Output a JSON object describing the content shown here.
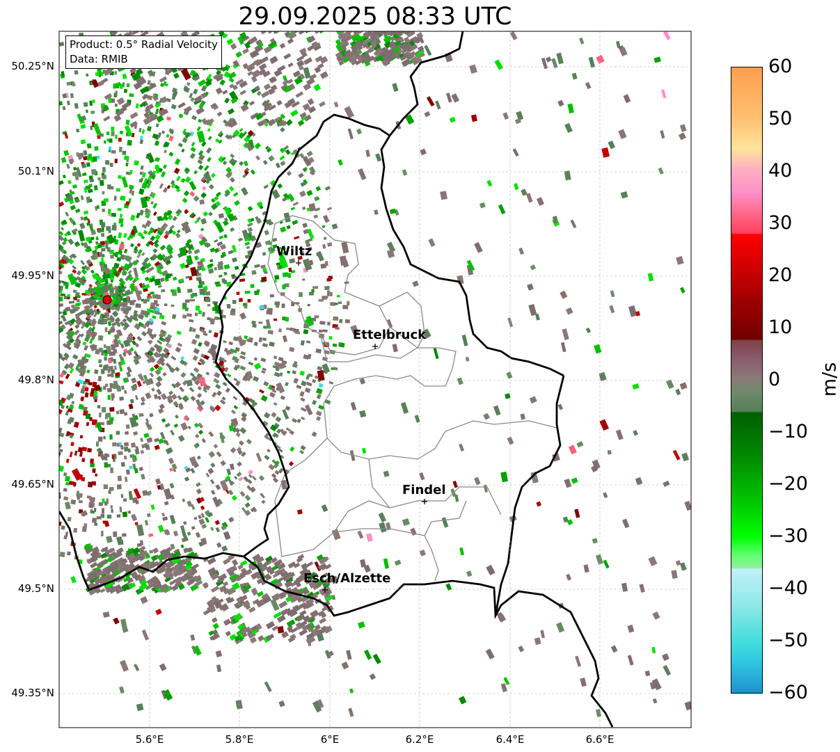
{
  "title": "29.09.2025 08:33 UTC",
  "info": {
    "product": "Product: 0.5° Radial Velocity",
    "data": "Data: RMIB"
  },
  "axes": {
    "lat_ticks": [
      "50.25°N",
      "50.1°N",
      "49.95°N",
      "49.8°N",
      "49.65°N",
      "49.5°N",
      "49.35°N"
    ],
    "lon_ticks": [
      "5.6°E",
      "5.8°E",
      "6°E",
      "6.2°E",
      "6.4°E",
      "6.6°E"
    ]
  },
  "cities": [
    {
      "name": "Wiltz"
    },
    {
      "name": "Ettelbruck"
    },
    {
      "name": "Findel"
    },
    {
      "name": "Esch/Alzette"
    }
  ],
  "colorbar": {
    "label": "m/s",
    "ticks": [
      "60",
      "50",
      "40",
      "30",
      "20",
      "10",
      "0",
      "−10",
      "−20",
      "−30",
      "−40",
      "−50",
      "−60"
    ],
    "range": [
      -60,
      60
    ]
  },
  "colors": {
    "radar_site": "#dd0000",
    "border": "#000000",
    "cantons": "#888888"
  }
}
